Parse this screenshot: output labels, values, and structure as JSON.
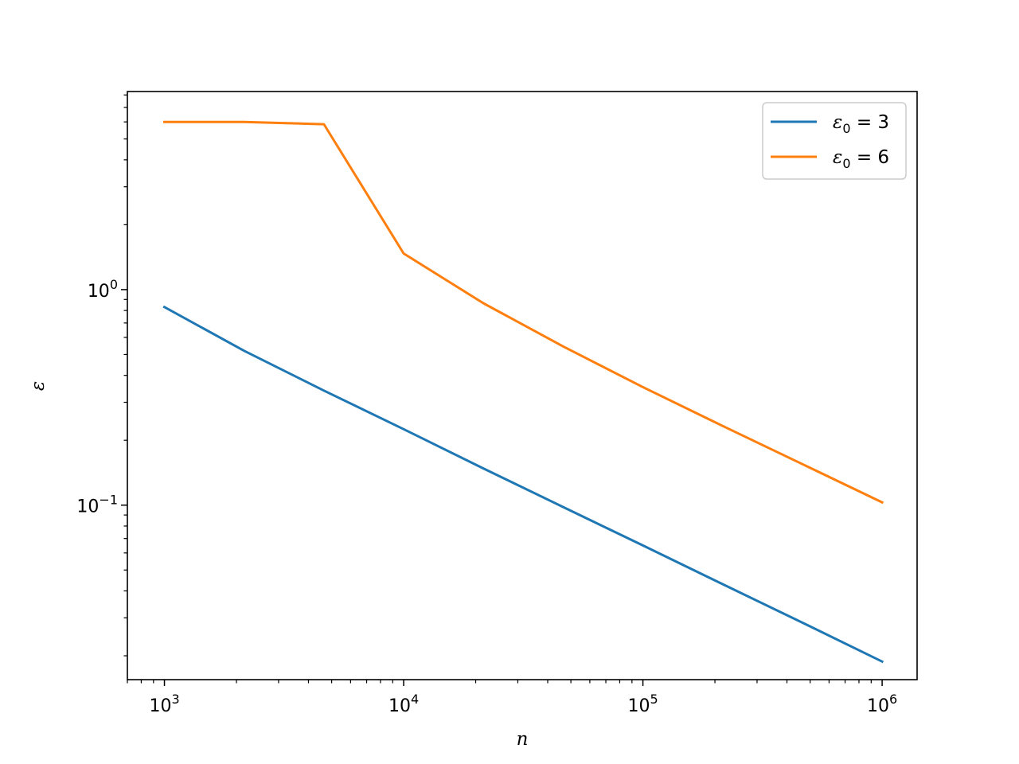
{
  "chart_data": {
    "type": "line",
    "xlabel": "n",
    "ylabel": "ε",
    "xscale": "log",
    "yscale": "log",
    "xlim": [
      700,
      1400000
    ],
    "ylim": [
      0.0155,
      8.3
    ],
    "x_ticks": [
      {
        "value": 1000,
        "base": "10",
        "exp": "3"
      },
      {
        "value": 10000,
        "base": "10",
        "exp": "4"
      },
      {
        "value": 100000,
        "base": "10",
        "exp": "5"
      },
      {
        "value": 1000000,
        "base": "10",
        "exp": "6"
      }
    ],
    "y_ticks": [
      {
        "value": 0.1,
        "base": "10",
        "exp": "−1"
      },
      {
        "value": 1,
        "base": "10",
        "exp": "0"
      }
    ],
    "grid": false,
    "legend": "top-right",
    "series": [
      {
        "name": "ε₀ = 3",
        "legend_symbol": "ε",
        "legend_sub": "0",
        "legend_value": " = 3",
        "color": "#1f77b4",
        "x": [
          1000,
          2154,
          4642,
          10000,
          21544,
          46416,
          100000,
          215443,
          464159,
          1000000
        ],
        "y": [
          0.83,
          0.52,
          0.34,
          0.225,
          0.148,
          0.098,
          0.065,
          0.043,
          0.0285,
          0.0188
        ]
      },
      {
        "name": "ε₀ = 6",
        "legend_symbol": "ε",
        "legend_sub": "0",
        "legend_value": " = 6",
        "color": "#ff7f0e",
        "x": [
          1000,
          2154,
          4642,
          10000,
          21544,
          46416,
          100000,
          215443,
          464159,
          1000000
        ],
        "y": [
          6.0,
          6.0,
          5.85,
          1.47,
          0.865,
          0.545,
          0.353,
          0.233,
          0.155,
          0.103
        ]
      }
    ]
  }
}
